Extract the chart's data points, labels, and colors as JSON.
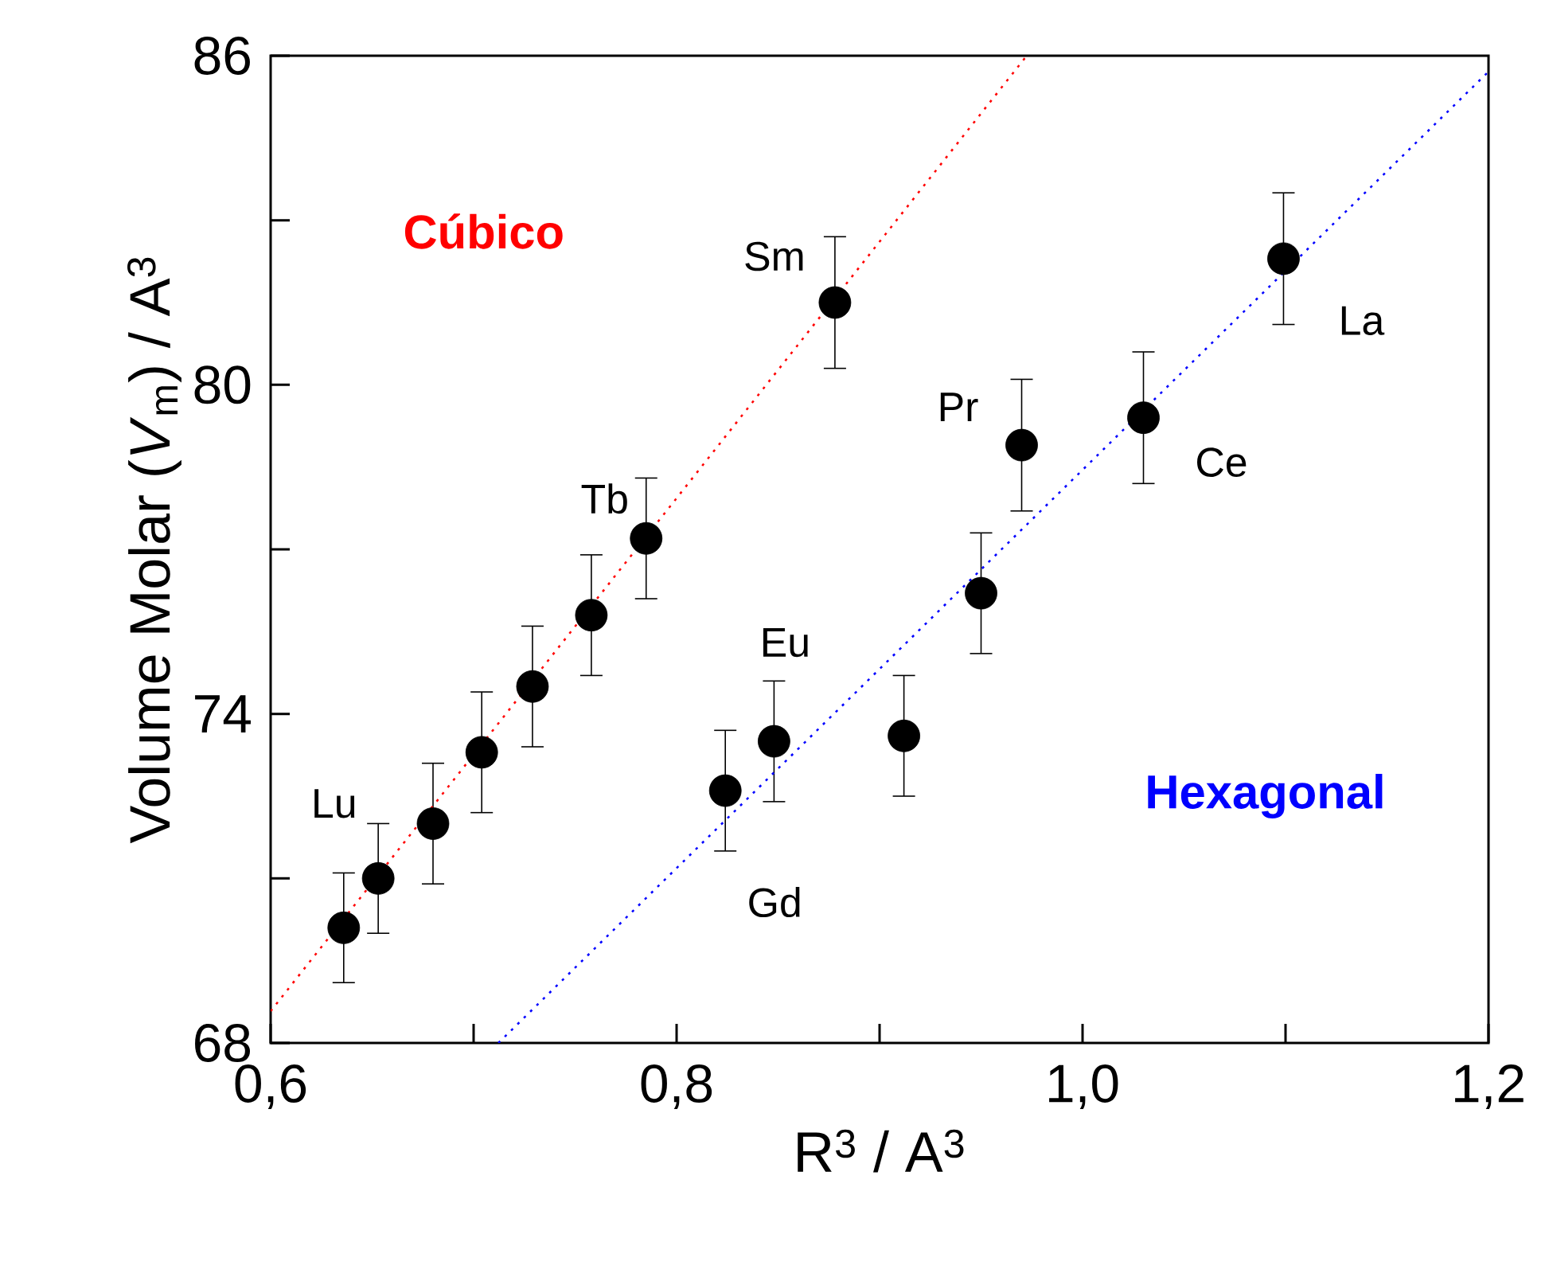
{
  "chart_data": {
    "type": "scatter",
    "xlabel": "R$^{3}$ / A$^{3}$",
    "ylabel": "Volume Molar (*V*$_{m}$) / A$^{3}$",
    "xlim": [
      0.6,
      1.2
    ],
    "ylim": [
      68,
      86
    ],
    "xticks": [
      {
        "value": 0.6,
        "label": "0,6"
      },
      {
        "value": 0.7,
        "label": null
      },
      {
        "value": 0.8,
        "label": "0,8"
      },
      {
        "value": 0.9,
        "label": null
      },
      {
        "value": 1.0,
        "label": "1,0"
      },
      {
        "value": 1.1,
        "label": null
      },
      {
        "value": 1.2,
        "label": "1,2"
      }
    ],
    "yticks": [
      68,
      {
        "value": 71,
        "label": null
      },
      74,
      {
        "value": 77,
        "label": null
      },
      80,
      {
        "value": 83,
        "label": null
      },
      86
    ],
    "series": [
      {
        "color": "#000000",
        "marker": "circle",
        "x": [
          0.636,
          0.653,
          0.68,
          0.704,
          0.729,
          0.758,
          0.785,
          0.878,
          0.824,
          0.848,
          0.912,
          0.95,
          0.97,
          1.03,
          1.099
        ],
        "values": [
          70.1,
          71.0,
          72.0,
          73.3,
          74.5,
          75.8,
          77.2,
          81.5,
          72.6,
          73.5,
          73.6,
          76.2,
          78.9,
          79.4,
          82.3
        ],
        "errors": [
          1.0,
          1.0,
          1.1,
          1.1,
          1.1,
          1.1,
          1.1,
          1.2,
          1.1,
          1.1,
          1.1,
          1.1,
          1.2,
          1.2,
          1.2
        ]
      },
      {
        "type": "line",
        "name": "Cúbico",
        "color": "#ff0000",
        "line_style": "dotted",
        "marker": "none",
        "x": [
          0.6,
          0.9725
        ],
        "values": [
          68.58,
          86
        ]
      },
      {
        "type": "line",
        "name": "Hexagonal",
        "color": "#0000ff",
        "line_style": "dotted",
        "marker": "none",
        "x": [
          0.7122,
          1.2
        ],
        "values": [
          68,
          85.71
        ]
      }
    ],
    "annotations": [
      {
        "text": "Lu",
        "x": 0.636,
        "y": 70.1
      },
      {
        "text": "Tb",
        "x": 0.785,
        "y": 77.2
      },
      {
        "text": "Sm",
        "x": 0.878,
        "y": 81.5
      },
      {
        "text": "Gd",
        "x": 0.824,
        "y": 72.6
      },
      {
        "text": "Eu",
        "x": 0.848,
        "y": 73.5
      },
      {
        "text": "Pr",
        "x": 0.97,
        "y": 78.9
      },
      {
        "text": "Ce",
        "x": 1.03,
        "y": 79.4
      },
      {
        "text": "La",
        "x": 1.099,
        "y": 82.3
      }
    ]
  }
}
